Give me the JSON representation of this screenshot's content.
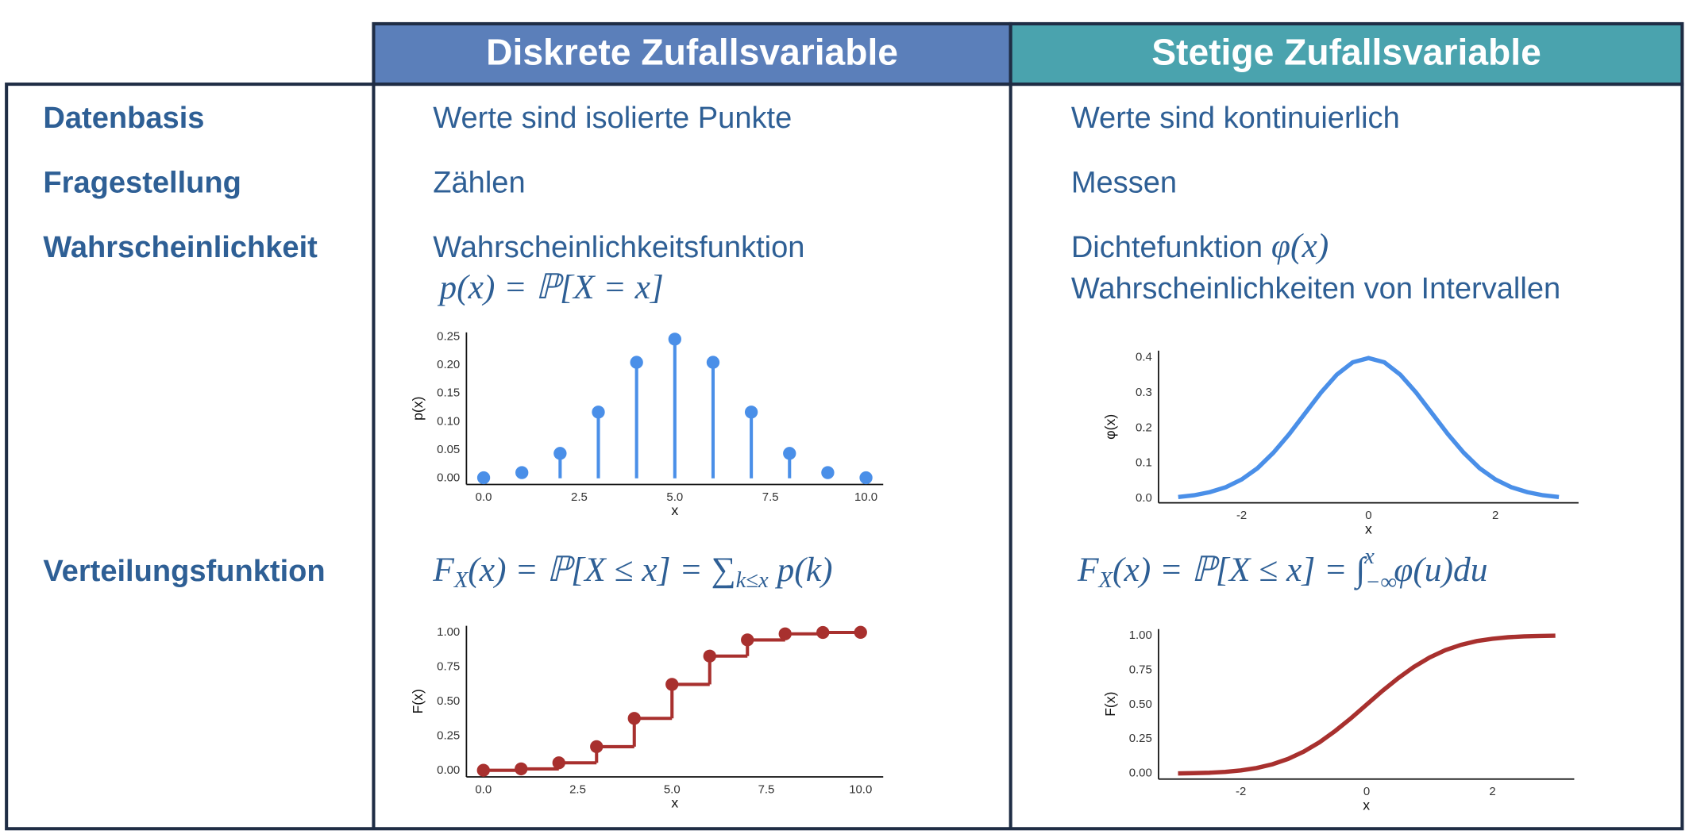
{
  "header": {
    "discrete": "Diskrete Zufallsvariable",
    "continuous": "Stetige Zufallsvariable"
  },
  "rows": [
    {
      "label": "Datenbasis",
      "discrete": "Werte sind isolierte Punkte",
      "continuous": "Werte sind kontinuierlich"
    },
    {
      "label": "Fragestellung",
      "discrete": "Zählen",
      "continuous": "Messen"
    },
    {
      "label": "Wahrscheinlichkeit",
      "discrete": "Wahrscheinlichkeitsfunktion",
      "discrete_formula": "p(x) = ℙ[X = x]",
      "continuous": "Dichtefunktion",
      "continuous_formula": "φ(x)",
      "continuous_note": "Wahrscheinlichkeiten von Intervallen"
    },
    {
      "label": "Verteilungsfunktion",
      "discrete_formula": [
        "F",
        "X",
        "(x) = ℙ[X ≤ x] = ∑",
        "k≤x",
        " p(k)"
      ],
      "continuous_formula": [
        "F",
        "X",
        "(x) = ℙ[X ≤ x] = ∫",
        "−∞",
        "x",
        "φ(u)du"
      ]
    }
  ],
  "charts": [
    {
      "type": "stem",
      "xlabel": "x",
      "ylabel": "p(x)",
      "color": "#4a8fe8",
      "x": [
        0,
        1,
        2,
        3,
        4,
        5,
        6,
        7,
        8,
        9,
        10
      ],
      "values": [
        0.001,
        0.01,
        0.044,
        0.117,
        0.205,
        0.246,
        0.205,
        0.117,
        0.044,
        0.01,
        0.001
      ],
      "xlim": [
        -0.45,
        10.45
      ],
      "ylim": [
        -0.011,
        0.258
      ],
      "xticks": [
        {
          "value": 0,
          "label": "0.0"
        },
        {
          "value": 2.5,
          "label": "2.5"
        },
        {
          "value": 5,
          "label": "5.0"
        },
        {
          "value": 7.5,
          "label": "7.5"
        },
        {
          "value": 10,
          "label": "10.0"
        }
      ],
      "yticks": [
        {
          "value": 0,
          "label": "0.00"
        },
        {
          "value": 0.05,
          "label": "0.05"
        },
        {
          "value": 0.1,
          "label": "0.10"
        },
        {
          "value": 0.15,
          "label": "0.15"
        },
        {
          "value": 0.2,
          "label": "0.20"
        },
        {
          "value": 0.25,
          "label": "0.25"
        }
      ]
    },
    {
      "type": "line",
      "xlabel": "x",
      "ylabel": "φ(x)",
      "color": "#4a8fe8",
      "x": [
        -3,
        -2.75,
        -2.5,
        -2.25,
        -2,
        -1.75,
        -1.5,
        -1.25,
        -1,
        -0.75,
        -0.5,
        -0.25,
        0,
        0.25,
        0.5,
        0.75,
        1,
        1.25,
        1.5,
        1.75,
        2,
        2.25,
        2.5,
        2.75,
        3
      ],
      "values": [
        0.004,
        0.009,
        0.018,
        0.032,
        0.054,
        0.086,
        0.13,
        0.183,
        0.242,
        0.301,
        0.352,
        0.387,
        0.399,
        0.387,
        0.352,
        0.301,
        0.242,
        0.183,
        0.13,
        0.086,
        0.054,
        0.032,
        0.018,
        0.009,
        0.004
      ],
      "xlim": [
        -3.31,
        3.31
      ],
      "ylim": [
        -0.0125,
        0.42
      ],
      "xticks": [
        -2,
        0,
        2
      ],
      "yticks": [
        {
          "value": 0,
          "label": "0.0"
        },
        {
          "value": 0.1,
          "label": "0.1"
        },
        {
          "value": 0.2,
          "label": "0.2"
        },
        {
          "value": 0.3,
          "label": "0.3"
        },
        {
          "value": 0.4,
          "label": "0.4"
        }
      ]
    },
    {
      "type": "step",
      "xlabel": "x",
      "ylabel": "F(x)",
      "color": "#a8302e",
      "x": [
        0,
        1,
        2,
        3,
        4,
        5,
        6,
        7,
        8,
        9,
        10
      ],
      "values": [
        0.001,
        0.011,
        0.055,
        0.172,
        0.377,
        0.623,
        0.828,
        0.945,
        0.989,
        0.999,
        1.0
      ],
      "xlim": [
        -0.45,
        10.6
      ],
      "ylim": [
        -0.047,
        1.047
      ],
      "xticks": [
        {
          "value": 0,
          "label": "0.0"
        },
        {
          "value": 2.5,
          "label": "2.5"
        },
        {
          "value": 5,
          "label": "5.0"
        },
        {
          "value": 7.5,
          "label": "7.5"
        },
        {
          "value": 10,
          "label": "10.0"
        }
      ],
      "yticks": [
        {
          "value": 0,
          "label": "0.00"
        },
        {
          "value": 0.25,
          "label": "0.25"
        },
        {
          "value": 0.5,
          "label": "0.50"
        },
        {
          "value": 0.75,
          "label": "0.75"
        },
        {
          "value": 1,
          "label": "1.00"
        }
      ]
    },
    {
      "type": "line",
      "xlabel": "x",
      "ylabel": "F(x)",
      "color": "#a8302e",
      "x": [
        -3,
        -2.75,
        -2.5,
        -2.25,
        -2,
        -1.75,
        -1.5,
        -1.25,
        -1,
        -0.75,
        -0.5,
        -0.25,
        0,
        0.25,
        0.5,
        0.75,
        1,
        1.25,
        1.5,
        1.75,
        2,
        2.25,
        2.5,
        2.75,
        3
      ],
      "values": [
        0.001,
        0.003,
        0.006,
        0.012,
        0.023,
        0.04,
        0.067,
        0.106,
        0.159,
        0.227,
        0.309,
        0.401,
        0.5,
        0.599,
        0.691,
        0.773,
        0.841,
        0.894,
        0.933,
        0.96,
        0.977,
        0.988,
        0.994,
        0.997,
        0.999
      ],
      "xlim": [
        -3.31,
        3.3
      ],
      "ylim": [
        -0.04,
        1.047
      ],
      "xticks": [
        -2,
        0,
        2
      ],
      "yticks": [
        {
          "value": 0,
          "label": "0.00"
        },
        {
          "value": 0.25,
          "label": "0.25"
        },
        {
          "value": 0.5,
          "label": "0.50"
        },
        {
          "value": 0.75,
          "label": "0.75"
        },
        {
          "value": 1,
          "label": "1.00"
        }
      ]
    }
  ]
}
